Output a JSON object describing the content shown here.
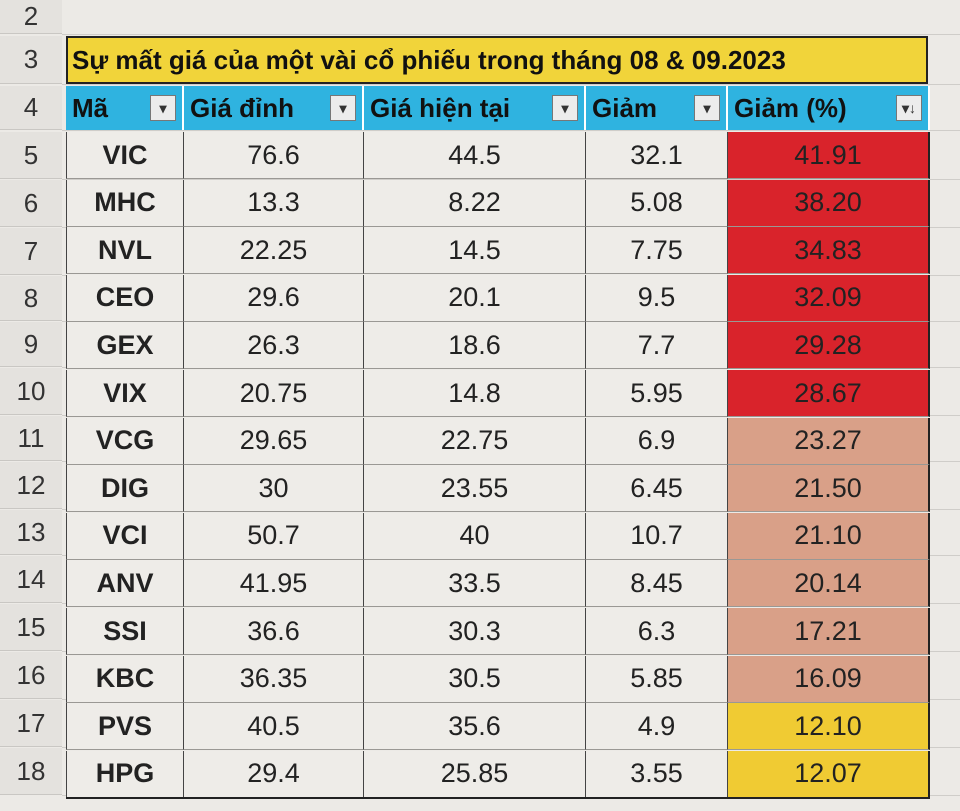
{
  "row_numbers": [
    "2",
    "3",
    "4",
    "5",
    "6",
    "7",
    "8",
    "9",
    "10",
    "11",
    "12",
    "13",
    "14",
    "15",
    "16",
    "17",
    "18"
  ],
  "title": "Sự mất giá của một vài cổ phiếu trong tháng 08 & 09.2023",
  "headers": [
    {
      "label": "Mã",
      "filter": "▾"
    },
    {
      "label": "Giá đỉnh",
      "filter": "▾"
    },
    {
      "label": "Giá hiện tại",
      "filter": "▾"
    },
    {
      "label": "Giảm",
      "filter": "▾"
    },
    {
      "label": "Giảm (%)",
      "filter": "▾↓"
    }
  ],
  "rows": [
    {
      "code": "VIC",
      "peak": "76.6",
      "current": "44.5",
      "drop": "32.1",
      "pct": "41.91",
      "band": "red"
    },
    {
      "code": "MHC",
      "peak": "13.3",
      "current": "8.22",
      "drop": "5.08",
      "pct": "38.20",
      "band": "red"
    },
    {
      "code": "NVL",
      "peak": "22.25",
      "current": "14.5",
      "drop": "7.75",
      "pct": "34.83",
      "band": "red"
    },
    {
      "code": "CEO",
      "peak": "29.6",
      "current": "20.1",
      "drop": "9.5",
      "pct": "32.09",
      "band": "red"
    },
    {
      "code": "GEX",
      "peak": "26.3",
      "current": "18.6",
      "drop": "7.7",
      "pct": "29.28",
      "band": "red"
    },
    {
      "code": "VIX",
      "peak": "20.75",
      "current": "14.8",
      "drop": "5.95",
      "pct": "28.67",
      "band": "red"
    },
    {
      "code": "VCG",
      "peak": "29.65",
      "current": "22.75",
      "drop": "6.9",
      "pct": "23.27",
      "band": "orange"
    },
    {
      "code": "DIG",
      "peak": "30",
      "current": "23.55",
      "drop": "6.45",
      "pct": "21.50",
      "band": "orange"
    },
    {
      "code": "VCI",
      "peak": "50.7",
      "current": "40",
      "drop": "10.7",
      "pct": "21.10",
      "band": "orange"
    },
    {
      "code": "ANV",
      "peak": "41.95",
      "current": "33.5",
      "drop": "8.45",
      "pct": "20.14",
      "band": "orange"
    },
    {
      "code": "SSI",
      "peak": "36.6",
      "current": "30.3",
      "drop": "6.3",
      "pct": "17.21",
      "band": "orange"
    },
    {
      "code": "KBC",
      "peak": "36.35",
      "current": "30.5",
      "drop": "5.85",
      "pct": "16.09",
      "band": "orange"
    },
    {
      "code": "PVS",
      "peak": "40.5",
      "current": "35.6",
      "drop": "4.9",
      "pct": "12.10",
      "band": "yellow"
    },
    {
      "code": "HPG",
      "peak": "29.4",
      "current": "25.85",
      "drop": "3.55",
      "pct": "12.07",
      "band": "yellow"
    }
  ],
  "colors": {
    "title_bg": "#f1d43a",
    "header_bg": "#2fb3e0",
    "band_red": "#d9232b",
    "band_orange": "#d9a088",
    "band_yellow": "#f0cb33"
  }
}
